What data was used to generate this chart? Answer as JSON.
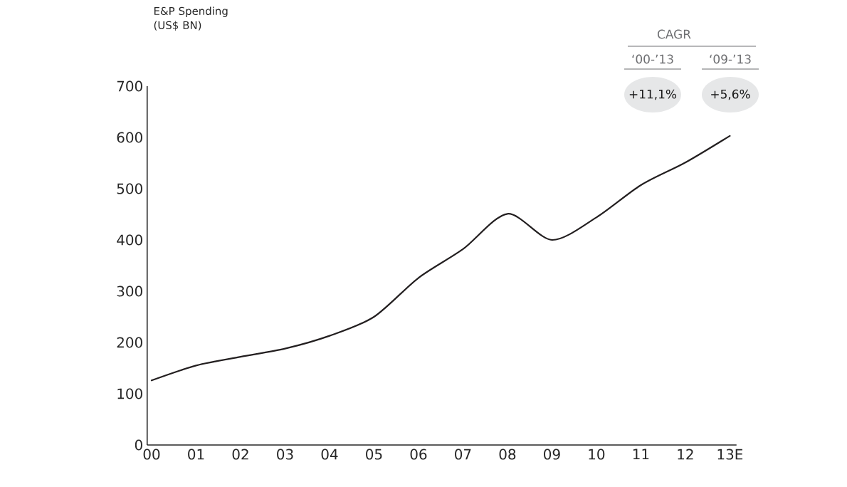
{
  "chart_data": {
    "type": "line",
    "ylabel": "E&P Spending (US$ BN)",
    "categories": [
      "00",
      "01",
      "02",
      "03",
      "04",
      "05",
      "06",
      "07",
      "08",
      "09",
      "10",
      "11",
      "12",
      "13E"
    ],
    "series": [
      {
        "color": "#231f20",
        "values": [
          126,
          155,
          172,
          188,
          213,
          250,
          326,
          382,
          451,
          400,
          444,
          507,
          551,
          603
        ]
      }
    ],
    "ylim": [
      0,
      700
    ],
    "yticks": [
      0,
      100,
      200,
      300,
      400,
      500,
      600,
      700
    ],
    "marker": "none",
    "line_style": "solid",
    "annotations": [
      "CAGR",
      "‘00-’13",
      "‘09-’13",
      "+11,1%",
      "+5,6%"
    ]
  }
}
